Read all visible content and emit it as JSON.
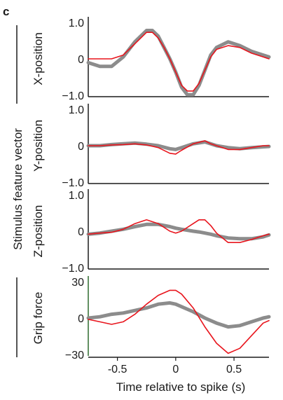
{
  "panel_label": "c",
  "colors": {
    "grey": "#8c8c8c",
    "red": "#e8141c",
    "axis": "#1a1a1a",
    "grip_axis": "#2e6b2e"
  },
  "shared_ylabel": "Stimulus feature vector",
  "chart_data": [
    {
      "type": "line",
      "ylabel": "X-position",
      "xlim": [
        -0.75,
        0.8
      ],
      "ylim": [
        -1.0,
        1.0
      ],
      "yticks": [
        "1.0",
        "0",
        "−1.0"
      ],
      "x": [
        -0.75,
        -0.65,
        -0.55,
        -0.45,
        -0.35,
        -0.25,
        -0.2,
        -0.15,
        -0.1,
        -0.05,
        0.0,
        0.05,
        0.1,
        0.15,
        0.2,
        0.25,
        0.3,
        0.35,
        0.45,
        0.55,
        0.65,
        0.75,
        0.8
      ],
      "series": [
        {
          "color": "grey",
          "values": [
            -0.1,
            -0.2,
            -0.2,
            0.05,
            0.45,
            0.75,
            0.75,
            0.6,
            0.3,
            0.0,
            -0.35,
            -0.75,
            -0.95,
            -0.95,
            -0.7,
            -0.3,
            0.1,
            0.3,
            0.45,
            0.35,
            0.2,
            0.1,
            0.05
          ]
        },
        {
          "color": "red",
          "values": [
            0.0,
            0.0,
            0.0,
            0.1,
            0.4,
            0.7,
            0.7,
            0.55,
            0.3,
            0.0,
            -0.35,
            -0.7,
            -0.85,
            -0.85,
            -0.65,
            -0.3,
            0.05,
            0.25,
            0.35,
            0.3,
            0.15,
            0.05,
            0.0
          ]
        }
      ]
    },
    {
      "type": "line",
      "ylabel": "Y-position",
      "xlim": [
        -0.75,
        0.8
      ],
      "ylim": [
        -1.0,
        1.0
      ],
      "yticks": [
        "1.0",
        "0",
        "−1.0"
      ],
      "x": [
        -0.75,
        -0.65,
        -0.55,
        -0.45,
        -0.35,
        -0.25,
        -0.15,
        -0.05,
        0.0,
        0.05,
        0.15,
        0.25,
        0.3,
        0.35,
        0.45,
        0.55,
        0.65,
        0.75,
        0.8
      ],
      "series": [
        {
          "color": "grey",
          "values": [
            0.0,
            0.0,
            0.03,
            0.05,
            0.07,
            0.04,
            0.0,
            -0.08,
            -0.1,
            -0.05,
            0.05,
            0.1,
            0.05,
            0.0,
            -0.05,
            -0.08,
            -0.05,
            -0.03,
            -0.02
          ]
        },
        {
          "color": "red",
          "values": [
            0.0,
            0.0,
            0.02,
            0.03,
            0.05,
            0.02,
            -0.05,
            -0.2,
            -0.22,
            -0.12,
            0.05,
            0.13,
            0.05,
            0.0,
            -0.1,
            -0.1,
            -0.05,
            0.0,
            0.0
          ]
        }
      ]
    },
    {
      "type": "line",
      "ylabel": "Z-position",
      "xlim": [
        -0.75,
        0.8
      ],
      "ylim": [
        -1.0,
        1.0
      ],
      "yticks": [
        "1.0",
        "0",
        "−1.0"
      ],
      "x": [
        -0.75,
        -0.65,
        -0.55,
        -0.45,
        -0.35,
        -0.25,
        -0.15,
        -0.05,
        0.0,
        0.05,
        0.15,
        0.2,
        0.25,
        0.3,
        0.35,
        0.45,
        0.55,
        0.65,
        0.75,
        0.8
      ],
      "series": [
        {
          "color": "grey",
          "values": [
            -0.08,
            -0.05,
            0.0,
            0.05,
            0.12,
            0.18,
            0.18,
            0.12,
            0.08,
            0.05,
            0.0,
            -0.02,
            -0.05,
            -0.08,
            -0.12,
            -0.18,
            -0.2,
            -0.2,
            -0.15,
            -0.1
          ]
        },
        {
          "color": "red",
          "values": [
            -0.08,
            -0.05,
            -0.03,
            0.05,
            0.2,
            0.3,
            0.2,
            0.0,
            -0.05,
            0.0,
            0.2,
            0.3,
            0.3,
            0.15,
            -0.05,
            -0.3,
            -0.3,
            -0.22,
            -0.12,
            -0.08
          ]
        }
      ]
    },
    {
      "type": "line",
      "ylabel": "Grip force",
      "xlim": [
        -0.75,
        0.8
      ],
      "ylim": [
        -30,
        30
      ],
      "yticks": [
        "30",
        "0",
        "−30"
      ],
      "x": [
        -0.75,
        -0.65,
        -0.55,
        -0.45,
        -0.35,
        -0.25,
        -0.15,
        -0.05,
        0.0,
        0.05,
        0.15,
        0.25,
        0.35,
        0.45,
        0.55,
        0.65,
        0.75,
        0.8
      ],
      "series": [
        {
          "color": "grey",
          "values": [
            0,
            1,
            3,
            4,
            6,
            8,
            11,
            12,
            11,
            9,
            5,
            0,
            -4,
            -7,
            -6,
            -3,
            0,
            1
          ]
        },
        {
          "color": "red",
          "values": [
            -1,
            -3,
            -5,
            -3,
            3,
            11,
            18,
            22,
            22,
            19,
            8,
            -7,
            -20,
            -28,
            -24,
            -14,
            -4,
            -2
          ]
        }
      ]
    }
  ],
  "xaxis": {
    "label": "Time relative to spike (s)",
    "ticks": [
      {
        "value": -0.5,
        "label": "-0.5"
      },
      {
        "value": 0,
        "label": "0"
      },
      {
        "value": 0.5,
        "label": "0.5"
      }
    ]
  }
}
